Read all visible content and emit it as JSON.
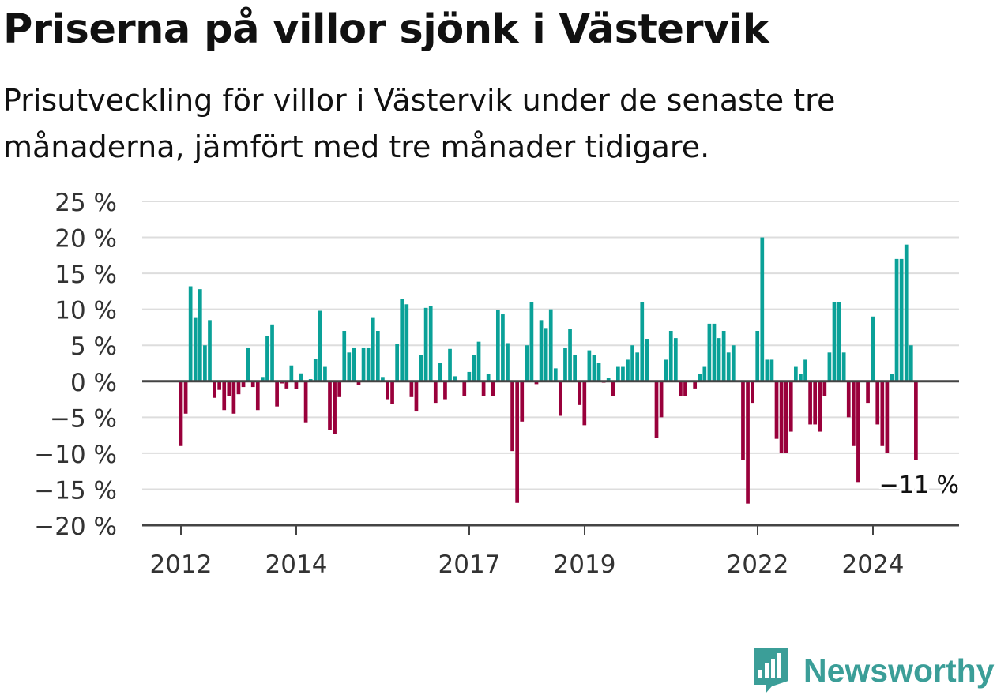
{
  "header": {
    "title": "Priserna på villor sjönk i Västervik",
    "subtitle": "Prisutveckling för villor i Västervik under de senaste tre månaderna, jämfört med tre månader tidigare."
  },
  "brand": {
    "name": "Newsworthy",
    "color": "#3b9e98"
  },
  "colors": {
    "positive": "#0aa198",
    "negative": "#99003b",
    "grid": "#dddddd",
    "axis": "#444444"
  },
  "chart_data": {
    "type": "bar",
    "y_tick_labels": [
      "25 %",
      "20 %",
      "15 %",
      "10 %",
      "5 %",
      "0 %",
      "−5 %",
      "−10 %",
      "−15 %",
      "−20 %"
    ],
    "y_ticks": [
      25,
      20,
      15,
      10,
      5,
      0,
      -5,
      -10,
      -15,
      -20
    ],
    "ylim": [
      -20,
      25
    ],
    "x_ticks": [
      2012,
      2014,
      2017,
      2019,
      2022,
      2024
    ],
    "x_tick_labels": [
      "2012",
      "2014",
      "2017",
      "2019",
      "2022",
      "2024"
    ],
    "x_start": 2012.0,
    "x_step": 0.0833,
    "unit": "%",
    "grid": true,
    "values": [
      -9,
      -4.5,
      13.2,
      8.8,
      12.8,
      5,
      8.5,
      -2.3,
      -1.2,
      -4,
      -2,
      -4.5,
      -1.8,
      -0.8,
      4.7,
      -0.8,
      -4,
      0.6,
      6.3,
      7.9,
      -3.5,
      -0.3,
      -1,
      2.2,
      -1.1,
      1.1,
      -5.7,
      0.3,
      3.1,
      9.8,
      2,
      -6.8,
      -7.3,
      -2.2,
      7,
      4,
      4.7,
      -0.5,
      4.7,
      4.7,
      8.8,
      7,
      0.6,
      -2.5,
      -3.2,
      5.2,
      11.4,
      10.7,
      -2.2,
      -4.2,
      3.7,
      10.2,
      10.5,
      -3,
      2.5,
      -2.5,
      4.5,
      0.7,
      0,
      -2,
      1.3,
      3.7,
      5.5,
      -2,
      1,
      -2,
      9.9,
      9.3,
      5.3,
      -9.7,
      -16.9,
      -5.6,
      5,
      11,
      -0.4,
      8.5,
      7.4,
      10,
      1.8,
      -4.8,
      4.6,
      7.3,
      3.6,
      -3.3,
      -6.1,
      4.3,
      3.7,
      2.5,
      -0.2,
      0.5,
      -2,
      2,
      2,
      3,
      5,
      4,
      11,
      5.9,
      0,
      -7.9,
      -5,
      3,
      7,
      6,
      -2,
      -2,
      0,
      -1,
      1,
      2,
      8,
      8,
      6,
      7,
      4,
      5,
      0,
      -11,
      -17,
      -3,
      7,
      20,
      3,
      3,
      -8,
      -10,
      -10,
      -7,
      2,
      1,
      3,
      -6,
      -6,
      -7,
      -2,
      4,
      11,
      11,
      4,
      -5,
      -9,
      -14,
      0,
      -3,
      9,
      -6,
      -9,
      -10,
      1,
      17,
      17,
      19,
      5,
      -11
    ],
    "annotation": {
      "label": "−11 %",
      "value": -11
    }
  }
}
